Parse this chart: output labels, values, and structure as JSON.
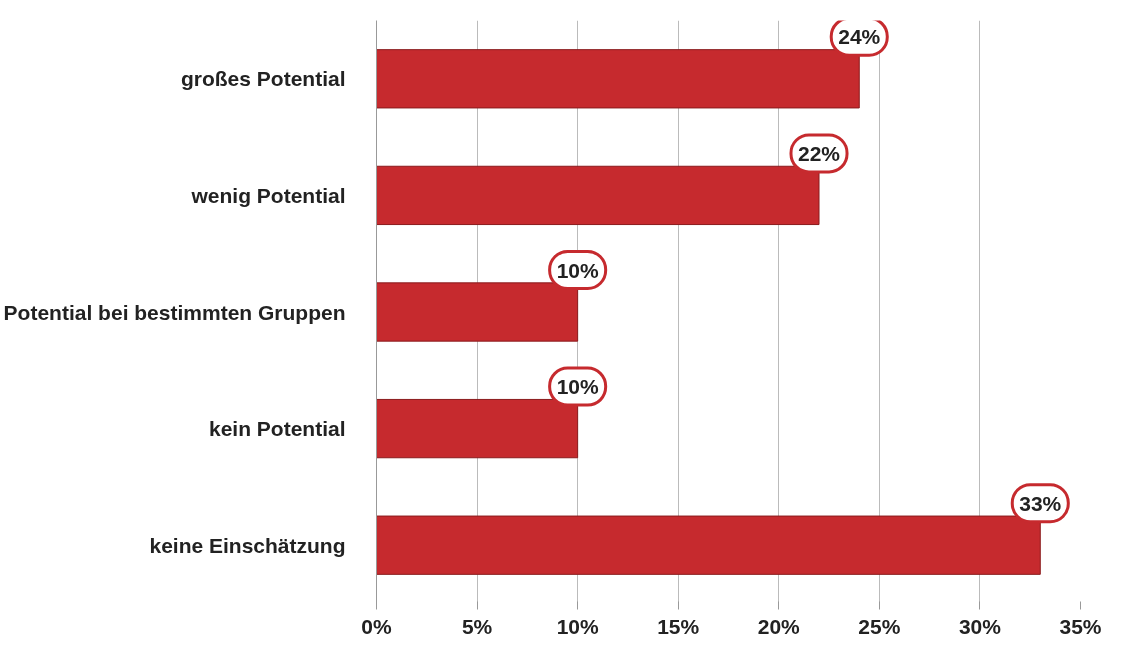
{
  "chart_data": {
    "type": "bar",
    "orientation": "horizontal",
    "categories": [
      "großes Potential",
      "wenig Potential",
      "Potential bei bestimmten Gruppen",
      "kein Potential",
      "keine Einschätzung"
    ],
    "values": [
      24,
      22,
      10,
      10,
      33
    ],
    "value_labels": [
      "24%",
      "22%",
      "10%",
      "10%",
      "33%"
    ],
    "color": "#c62a2e",
    "xlim": [
      0,
      35
    ],
    "xticks": [
      {
        "value": 0,
        "label": "0%"
      },
      {
        "value": 5,
        "label": "5%"
      },
      {
        "value": 10,
        "label": "10%"
      },
      {
        "value": 15,
        "label": "15%"
      },
      {
        "value": 20,
        "label": "20%"
      },
      {
        "value": 25,
        "label": "25%"
      },
      {
        "value": 30,
        "label": "30%"
      },
      {
        "value": 35,
        "label": "35%"
      }
    ],
    "grid": "x",
    "legend": false
  }
}
